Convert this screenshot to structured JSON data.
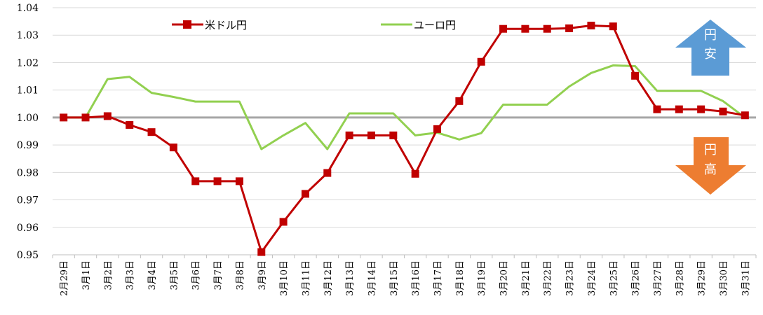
{
  "chart_data": {
    "type": "line",
    "title": "",
    "xlabel": "",
    "ylabel": "",
    "ylim": [
      0.95,
      1.04
    ],
    "yticks": [
      "0.95",
      "0.96",
      "0.97",
      "0.98",
      "0.99",
      "1.00",
      "1.01",
      "1.02",
      "1.03",
      "1.04"
    ],
    "grid": true,
    "legend_position": "top",
    "baseline": 1.0,
    "categories": [
      "2月29日",
      "3月1日",
      "3月2日",
      "3月3日",
      "3月4日",
      "3月5日",
      "3月6日",
      "3月7日",
      "3月8日",
      "3月9日",
      "3月10日",
      "3月11日",
      "3月12日",
      "3月13日",
      "3月14日",
      "3月15日",
      "3月16日",
      "3月17日",
      "3月18日",
      "3月19日",
      "3月20日",
      "3月21日",
      "3月22日",
      "3月23日",
      "3月24日",
      "3月25日",
      "3月26日",
      "3月27日",
      "3月28日",
      "3月29日",
      "3月30日",
      "3月31日"
    ],
    "series": [
      {
        "name": "米ドル円",
        "color": "#C00000",
        "marker": "square",
        "values": [
          1.0,
          1.0,
          1.0005,
          0.9973,
          0.9947,
          0.9891,
          0.9768,
          0.9768,
          0.9768,
          0.951,
          0.962,
          0.9722,
          0.9798,
          0.9935,
          0.9935,
          0.9935,
          0.9795,
          0.9958,
          1.006,
          1.0203,
          1.0323,
          1.0323,
          1.0323,
          1.0325,
          1.0335,
          1.0332,
          1.0152,
          1.003,
          1.003,
          1.003,
          1.0022,
          1.0008
        ]
      },
      {
        "name": "ユーロ円",
        "color": "#92D050",
        "marker": "none",
        "values": [
          1.0,
          1.0,
          1.014,
          1.0148,
          1.009,
          1.0075,
          1.0058,
          1.0058,
          1.0058,
          0.9885,
          0.9935,
          0.998,
          0.9885,
          1.0015,
          1.0015,
          1.0015,
          0.9935,
          0.9945,
          0.992,
          0.9943,
          1.0047,
          1.0047,
          1.0047,
          1.0113,
          1.0162,
          1.019,
          1.0187,
          1.0097,
          1.0097,
          1.0097,
          1.006,
          1.0
        ]
      }
    ]
  },
  "annotations": {
    "yen_weak": {
      "line1": "円",
      "line2": "安",
      "color": "#5B9BD5"
    },
    "yen_strong": {
      "line1": "円",
      "line2": "高",
      "color": "#ED7D31"
    }
  },
  "baseline_color": "#A6A6A6",
  "grid_color": "#D9D9D9"
}
